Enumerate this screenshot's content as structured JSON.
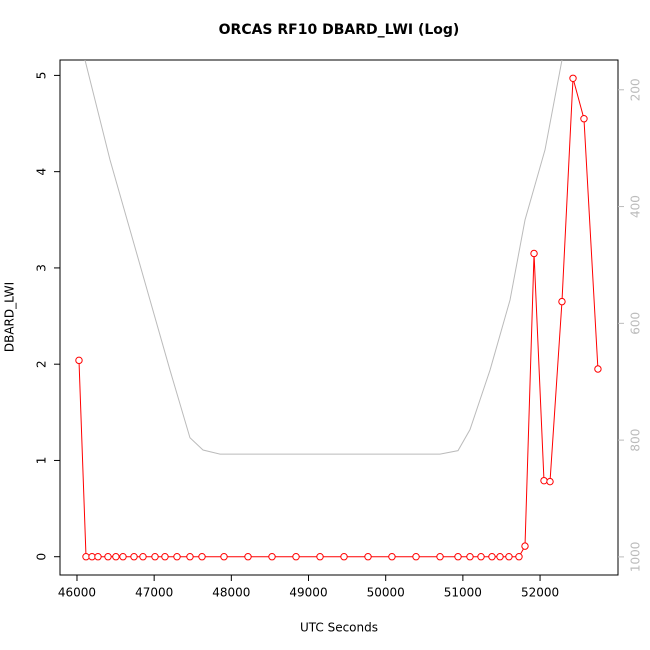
{
  "chart_data": {
    "type": "line",
    "title": "ORCAS RF10 DBARD_LWI (Log)",
    "x_label": "UTC Seconds",
    "y_label": "DBARD_LWI",
    "xlim": [
      45780,
      53010
    ],
    "xticks": [
      46000,
      47000,
      48000,
      49000,
      50000,
      51000,
      52000
    ],
    "ylim": [
      -0.19,
      5.16
    ],
    "yticks": [
      0,
      1,
      2,
      3,
      4,
      5
    ],
    "y2lim": [
      1031,
      149
    ],
    "y2ticks": [
      200,
      400,
      600,
      800,
      1000
    ],
    "series": [
      {
        "color": "#bbbbbb",
        "axis": "y2",
        "x": [
          46104,
          46233,
          46428,
          46687,
          46946,
          47205,
          47464,
          47633,
          47853,
          50704,
          50937,
          51092,
          51352,
          51611,
          51805,
          52064,
          52284
        ],
        "values": [
          149,
          217,
          320,
          440,
          560,
          680,
          796,
          817,
          824,
          824,
          818,
          782,
          680,
          560,
          423,
          303,
          149
        ]
      },
      {
        "color": "#ff0000",
        "x": [
          46026,
          46117,
          46195,
          46272,
          46402,
          46504,
          46596,
          46739,
          46855,
          47011,
          47140,
          47296,
          47464,
          47620,
          47905,
          48216,
          48527,
          48838,
          49149,
          49460,
          49771,
          50081,
          50393,
          50704,
          50937,
          51092,
          51235,
          51377,
          51481,
          51597,
          51727,
          51805,
          51922,
          52051,
          52129,
          52284,
          52427,
          52569,
          52750
        ],
        "values": [
          2.04,
          0,
          0,
          0,
          0,
          0,
          0,
          0,
          0,
          0,
          0,
          0,
          0,
          0,
          0,
          0,
          0,
          0,
          0,
          0,
          0,
          0,
          0,
          0,
          0,
          0,
          0,
          0,
          0,
          0,
          0,
          0.11,
          3.15,
          0.79,
          0.78,
          2.65,
          4.97,
          4.55,
          1.95
        ]
      }
    ]
  }
}
